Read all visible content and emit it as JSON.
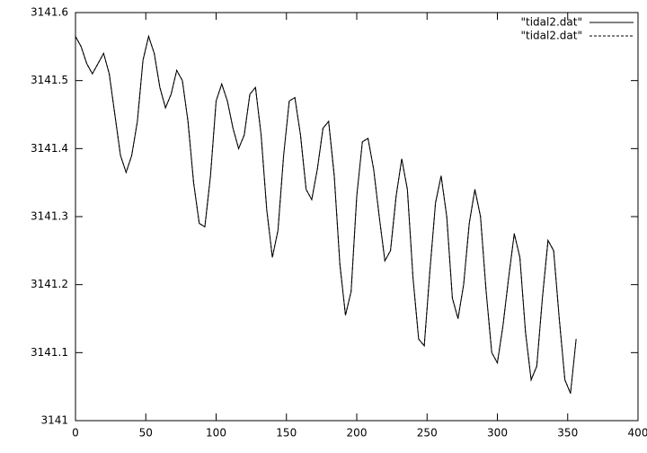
{
  "chart_data": {
    "type": "line",
    "x": [
      0,
      4,
      8,
      12,
      16,
      20,
      24,
      28,
      32,
      36,
      40,
      44,
      48,
      52,
      56,
      60,
      64,
      68,
      72,
      76,
      80,
      84,
      88,
      92,
      96,
      100,
      104,
      108,
      112,
      116,
      120,
      124,
      128,
      132,
      136,
      140,
      144,
      148,
      152,
      156,
      160,
      164,
      168,
      172,
      176,
      180,
      184,
      188,
      192,
      196,
      200,
      204,
      208,
      212,
      216,
      220,
      224,
      228,
      232,
      236,
      240,
      244,
      248,
      252,
      256,
      260,
      264,
      268,
      272,
      276,
      280,
      284,
      288,
      292,
      296,
      300,
      304,
      308,
      312,
      316,
      320,
      324,
      328,
      332,
      336,
      340,
      344,
      348,
      352,
      356
    ],
    "series": [
      {
        "name": "\"tidal2.dat\"",
        "color": "#000000",
        "line_style": "solid",
        "values": [
          3141.565,
          3141.55,
          3141.525,
          3141.51,
          3141.525,
          3141.54,
          3141.51,
          3141.45,
          3141.39,
          3141.365,
          3141.39,
          3141.44,
          3141.53,
          3141.565,
          3141.54,
          3141.49,
          3141.46,
          3141.48,
          3141.515,
          3141.5,
          3141.44,
          3141.35,
          3141.29,
          3141.285,
          3141.36,
          3141.47,
          3141.495,
          3141.47,
          3141.43,
          3141.4,
          3141.42,
          3141.48,
          3141.49,
          3141.42,
          3141.31,
          3141.24,
          3141.28,
          3141.39,
          3141.47,
          3141.475,
          3141.42,
          3141.34,
          3141.325,
          3141.37,
          3141.43,
          3141.44,
          3141.36,
          3141.23,
          3141.155,
          3141.19,
          3141.33,
          3141.41,
          3141.415,
          3141.37,
          3141.3,
          3141.235,
          3141.25,
          3141.33,
          3141.385,
          3141.34,
          3141.21,
          3141.12,
          3141.11,
          3141.22,
          3141.32,
          3141.36,
          3141.3,
          3141.18,
          3141.15,
          3141.2,
          3141.29,
          3141.34,
          3141.3,
          3141.19,
          3141.1,
          3141.085,
          3141.14,
          3141.21,
          3141.275,
          3141.24,
          3141.13,
          3141.06,
          3141.08,
          3141.18,
          3141.265,
          3141.25,
          3141.15,
          3141.06,
          3141.04,
          3141.12
        ]
      },
      {
        "name": "\"tidal2.dat\"",
        "color": "#000000",
        "line_style": "dashed",
        "values": [
          3141.565,
          3141.55,
          3141.525,
          3141.51,
          3141.525,
          3141.54,
          3141.51,
          3141.45,
          3141.39,
          3141.365,
          3141.39,
          3141.44,
          3141.53,
          3141.565,
          3141.54,
          3141.49,
          3141.46,
          3141.48,
          3141.515,
          3141.5,
          3141.44,
          3141.35,
          3141.29,
          3141.285,
          3141.36,
          3141.47,
          3141.495,
          3141.47,
          3141.43,
          3141.4,
          3141.42,
          3141.48,
          3141.49,
          3141.42,
          3141.31,
          3141.24,
          3141.28,
          3141.39,
          3141.47,
          3141.475,
          3141.42,
          3141.34,
          3141.325,
          3141.37,
          3141.43,
          3141.44,
          3141.36,
          3141.23,
          3141.155,
          3141.19,
          3141.33,
          3141.41,
          3141.415,
          3141.37,
          3141.3,
          3141.235,
          3141.25,
          3141.33,
          3141.385,
          3141.34,
          3141.21,
          3141.12,
          3141.11,
          3141.22,
          3141.32,
          3141.36,
          3141.3,
          3141.18,
          3141.15,
          3141.2,
          3141.29,
          3141.34,
          3141.3,
          3141.19,
          3141.1,
          3141.085,
          3141.14,
          3141.21,
          3141.275,
          3141.24,
          3141.13,
          3141.06,
          3141.08,
          3141.18,
          3141.265,
          3141.25,
          3141.15,
          3141.06,
          3141.04,
          3141.12
        ]
      }
    ],
    "xlim": [
      0,
      400
    ],
    "xticks": [
      0,
      50,
      100,
      150,
      200,
      250,
      300,
      350,
      400
    ],
    "ylim": [
      3141,
      3141.6
    ],
    "yticks": [
      3141,
      3141.1,
      3141.2,
      3141.3,
      3141.4,
      3141.5,
      3141.6
    ],
    "legend": "top-right"
  }
}
